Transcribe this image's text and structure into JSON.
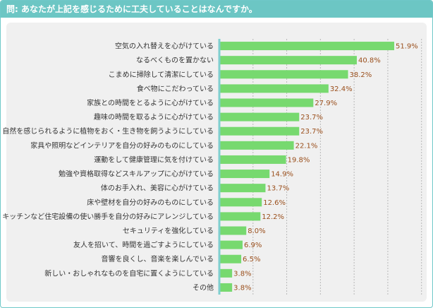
{
  "header": {
    "title": "問: あなたが上記を感じるために工夫していることはなんですか。"
  },
  "colors": {
    "bar": "#77d96f",
    "header": "#6cc6c4",
    "value_text": "#9a4f1c",
    "panel": "#f0f0f0"
  },
  "chart_data": {
    "type": "bar",
    "orientation": "horizontal",
    "title": "問: あなたが上記を感じるために工夫していることはなんですか。",
    "unit": "%",
    "grid": true,
    "xlim": [
      0,
      60
    ],
    "categories": [
      "空気の入れ替えを心がけている",
      "なるべくものを置かない",
      "こまめに掃除して清潔にしている",
      "食べ物にこだわっている",
      "家族との時間をとるように心がけている",
      "趣味の時間を取るように心がけている",
      "自然を感じられるように植物をおく・生き物を飼うようにしている",
      "家具や照明などインテリアを自分の好みのものにしている",
      "運動をして健康管理に気を付けている",
      "勉強や資格取得などスキルアップに心がけている",
      "体のお手入れ、美容に心がけている",
      "床や壁材を自分の好みのものにしている",
      "キッチンなど住宅設備の使い勝手を自分の好みにアレンジしている",
      "セキュリティを強化している",
      "友人を招いて、時間を過ごすようにしている",
      "音響を良くし、音楽を楽しんでいる",
      "新しい・おしゃれなものを自宅に置くようにしている",
      "その他"
    ],
    "values": [
      51.9,
      40.8,
      38.2,
      32.4,
      27.9,
      23.7,
      23.7,
      22.1,
      19.8,
      14.9,
      13.7,
      12.6,
      12.2,
      8.0,
      6.9,
      6.5,
      3.8,
      3.8
    ],
    "value_labels": [
      "51.9%",
      "40.8%",
      "38.2%",
      "32.4%",
      "27.9%",
      "23.7%",
      "23.7%",
      "22.1%",
      "19.8%",
      "14.9%",
      "13.7%",
      "12.6%",
      "12.2%",
      "8.0%",
      "6.9%",
      "6.5%",
      "3.8%",
      "3.8%"
    ]
  }
}
